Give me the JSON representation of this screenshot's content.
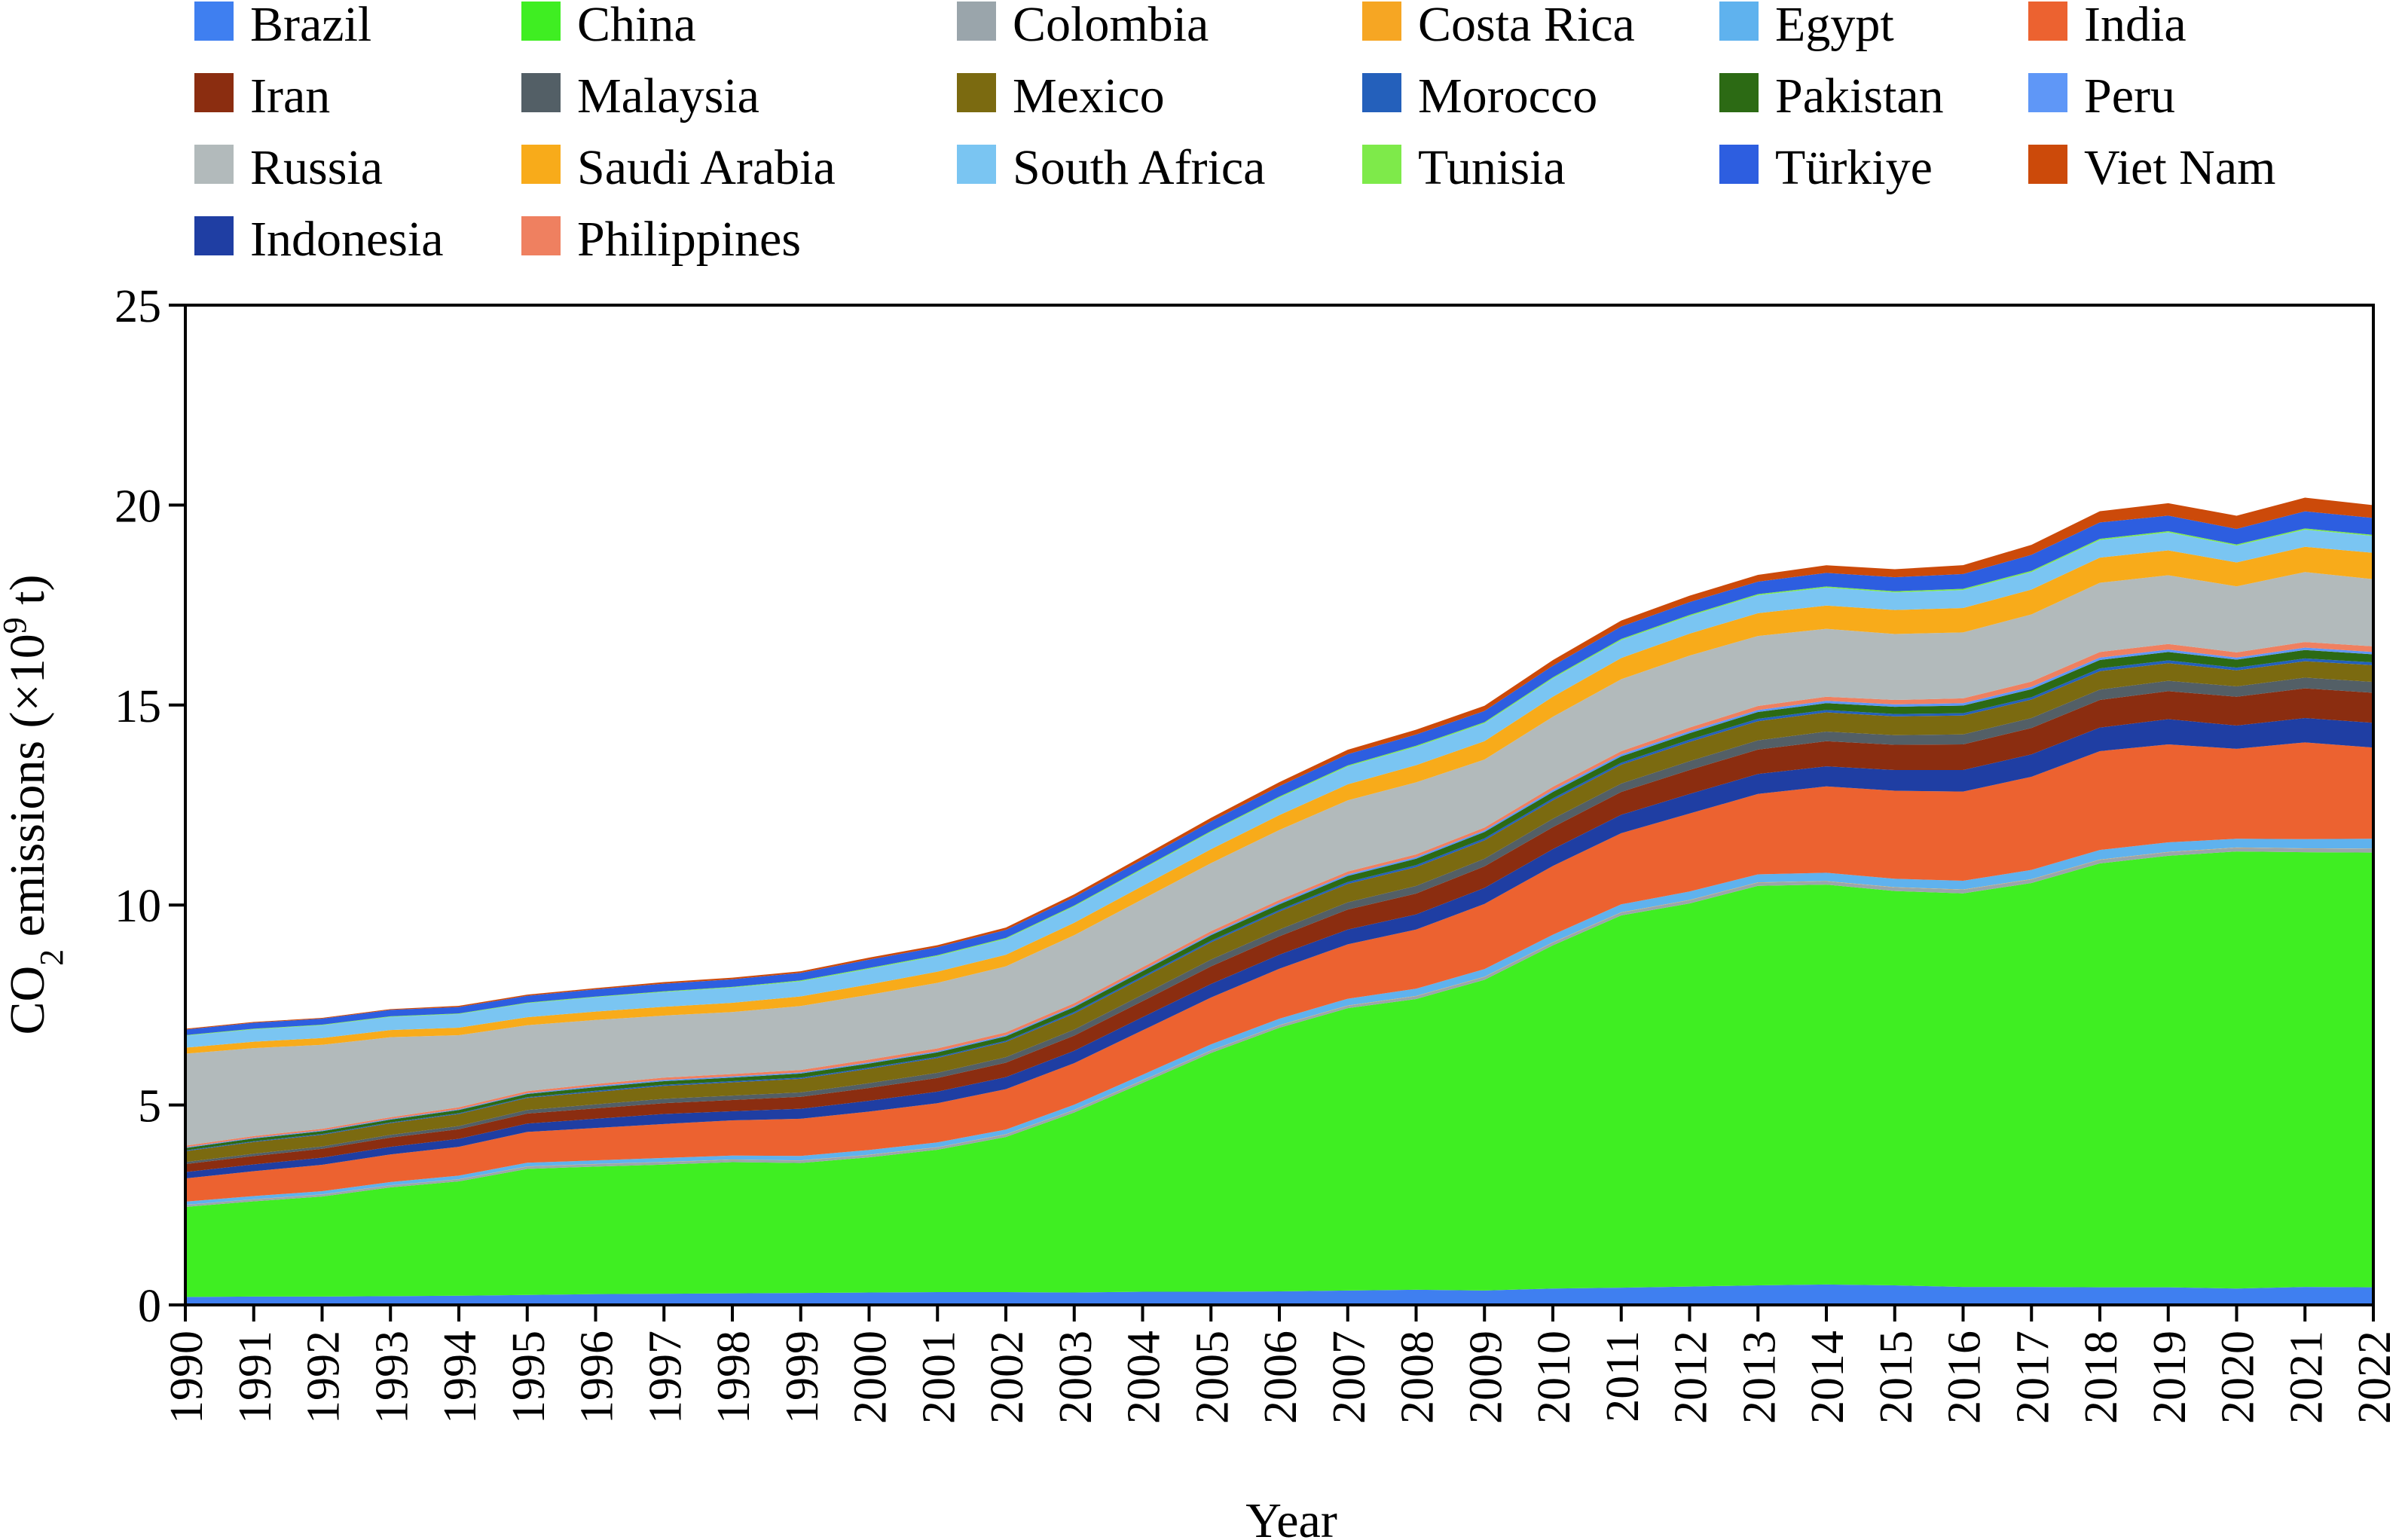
{
  "chart_data": {
    "type": "area",
    "stacked": true,
    "title": "",
    "xlabel": "Year",
    "ylabel": "CO",
    "ylabel_sub": "2",
    "ylabel_rest": " emissions (×10",
    "ylabel_sup": "9",
    "ylabel_end": " t)",
    "ylim": [
      0,
      25
    ],
    "yticks": [
      0,
      5,
      10,
      15,
      20,
      25
    ],
    "grid": false,
    "legend_position": "top",
    "x": [
      1990,
      1991,
      1992,
      1993,
      1994,
      1995,
      1996,
      1997,
      1998,
      1999,
      2000,
      2001,
      2002,
      2003,
      2004,
      2005,
      2006,
      2007,
      2008,
      2009,
      2010,
      2011,
      2012,
      2013,
      2014,
      2015,
      2016,
      2017,
      2018,
      2019,
      2020,
      2021,
      2022
    ],
    "series": [
      {
        "name": "Brazil",
        "color": "#3f7ff0",
        "values": [
          0.2,
          0.21,
          0.21,
          0.22,
          0.23,
          0.25,
          0.27,
          0.28,
          0.29,
          0.3,
          0.31,
          0.32,
          0.32,
          0.31,
          0.33,
          0.33,
          0.34,
          0.36,
          0.38,
          0.36,
          0.41,
          0.43,
          0.46,
          0.49,
          0.51,
          0.49,
          0.45,
          0.45,
          0.44,
          0.44,
          0.41,
          0.45,
          0.44
        ]
      },
      {
        "name": "China",
        "color": "#3fee22",
        "values": [
          2.25,
          2.38,
          2.5,
          2.72,
          2.86,
          3.15,
          3.19,
          3.23,
          3.28,
          3.25,
          3.38,
          3.56,
          3.88,
          4.5,
          5.22,
          5.97,
          6.59,
          7.06,
          7.27,
          7.77,
          8.58,
          9.31,
          9.58,
          9.99,
          10.0,
          9.86,
          9.84,
          10.1,
          10.6,
          10.79,
          10.93,
          10.87,
          10.87
        ]
      },
      {
        "name": "Colombia",
        "color": "#9aa5ab",
        "values": [
          0.05,
          0.05,
          0.05,
          0.05,
          0.05,
          0.06,
          0.06,
          0.06,
          0.06,
          0.06,
          0.06,
          0.06,
          0.06,
          0.06,
          0.06,
          0.06,
          0.06,
          0.06,
          0.07,
          0.07,
          0.07,
          0.07,
          0.08,
          0.08,
          0.08,
          0.09,
          0.09,
          0.09,
          0.09,
          0.09,
          0.09,
          0.09,
          0.09
        ]
      },
      {
        "name": "Costa Rica",
        "color": "#f6a623",
        "values": [
          0.003,
          0.003,
          0.004,
          0.004,
          0.004,
          0.005,
          0.005,
          0.005,
          0.005,
          0.005,
          0.005,
          0.005,
          0.006,
          0.006,
          0.006,
          0.006,
          0.007,
          0.007,
          0.007,
          0.007,
          0.007,
          0.007,
          0.007,
          0.007,
          0.007,
          0.007,
          0.007,
          0.007,
          0.007,
          0.007,
          0.007,
          0.007,
          0.007
        ]
      },
      {
        "name": "Egypt",
        "color": "#5fb2ee",
        "values": [
          0.08,
          0.08,
          0.08,
          0.08,
          0.09,
          0.09,
          0.09,
          0.1,
          0.1,
          0.11,
          0.12,
          0.12,
          0.12,
          0.13,
          0.14,
          0.15,
          0.16,
          0.17,
          0.18,
          0.19,
          0.19,
          0.2,
          0.21,
          0.2,
          0.21,
          0.21,
          0.22,
          0.23,
          0.24,
          0.24,
          0.22,
          0.23,
          0.25
        ]
      },
      {
        "name": "India",
        "color": "#ec6230",
        "values": [
          0.58,
          0.62,
          0.66,
          0.69,
          0.72,
          0.77,
          0.81,
          0.85,
          0.88,
          0.93,
          0.96,
          0.98,
          1.01,
          1.04,
          1.11,
          1.17,
          1.25,
          1.36,
          1.48,
          1.63,
          1.72,
          1.78,
          1.95,
          2.01,
          2.16,
          2.2,
          2.23,
          2.33,
          2.47,
          2.45,
          2.25,
          2.42,
          2.28
        ]
      },
      {
        "name": "Iran",
        "color": "#8b2d10",
        "values": [
          0.2,
          0.21,
          0.22,
          0.23,
          0.24,
          0.25,
          0.26,
          0.27,
          0.28,
          0.3,
          0.32,
          0.34,
          0.36,
          0.38,
          0.4,
          0.44,
          0.46,
          0.5,
          0.52,
          0.54,
          0.55,
          0.57,
          0.6,
          0.61,
          0.63,
          0.63,
          0.64,
          0.66,
          0.69,
          0.7,
          0.72,
          0.74,
          0.75
        ]
      },
      {
        "name": "Malaysia",
        "color": "#535f66",
        "values": [
          0.05,
          0.06,
          0.06,
          0.07,
          0.08,
          0.09,
          0.1,
          0.11,
          0.11,
          0.11,
          0.12,
          0.13,
          0.14,
          0.15,
          0.16,
          0.17,
          0.17,
          0.18,
          0.19,
          0.19,
          0.21,
          0.21,
          0.22,
          0.23,
          0.24,
          0.24,
          0.25,
          0.25,
          0.26,
          0.26,
          0.26,
          0.27,
          0.27
        ]
      },
      {
        "name": "Mexico",
        "color": "#7b6a10",
        "values": [
          0.27,
          0.29,
          0.29,
          0.29,
          0.3,
          0.3,
          0.31,
          0.32,
          0.33,
          0.34,
          0.36,
          0.37,
          0.38,
          0.4,
          0.42,
          0.43,
          0.45,
          0.46,
          0.47,
          0.46,
          0.46,
          0.47,
          0.48,
          0.48,
          0.48,
          0.47,
          0.47,
          0.46,
          0.46,
          0.44,
          0.4,
          0.41,
          0.42
        ]
      },
      {
        "name": "Morocco",
        "color": "#2460bb",
        "values": [
          0.02,
          0.02,
          0.02,
          0.02,
          0.02,
          0.02,
          0.03,
          0.03,
          0.03,
          0.03,
          0.03,
          0.03,
          0.03,
          0.04,
          0.04,
          0.04,
          0.04,
          0.05,
          0.05,
          0.05,
          0.05,
          0.05,
          0.06,
          0.06,
          0.06,
          0.06,
          0.06,
          0.06,
          0.07,
          0.07,
          0.07,
          0.07,
          0.07
        ]
      },
      {
        "name": "Pakistan",
        "color": "#2c6a14",
        "values": [
          0.06,
          0.07,
          0.07,
          0.07,
          0.08,
          0.08,
          0.09,
          0.09,
          0.09,
          0.1,
          0.1,
          0.11,
          0.11,
          0.12,
          0.13,
          0.14,
          0.14,
          0.15,
          0.16,
          0.16,
          0.16,
          0.16,
          0.16,
          0.17,
          0.17,
          0.18,
          0.19,
          0.2,
          0.21,
          0.21,
          0.2,
          0.21,
          0.2
        ]
      },
      {
        "name": "Peru",
        "color": "#5f97f7",
        "values": [
          0.02,
          0.02,
          0.02,
          0.02,
          0.02,
          0.02,
          0.03,
          0.03,
          0.03,
          0.03,
          0.03,
          0.03,
          0.03,
          0.03,
          0.03,
          0.03,
          0.04,
          0.04,
          0.04,
          0.04,
          0.05,
          0.05,
          0.05,
          0.05,
          0.06,
          0.06,
          0.06,
          0.06,
          0.06,
          0.06,
          0.05,
          0.06,
          0.06
        ]
      },
      {
        "name": "Russia",
        "color": "#b2babb",
        "values": [
          2.3,
          2.2,
          2.1,
          2.0,
          1.8,
          1.65,
          1.6,
          1.55,
          1.55,
          1.6,
          1.62,
          1.64,
          1.65,
          1.7,
          1.7,
          1.7,
          1.75,
          1.78,
          1.8,
          1.7,
          1.75,
          1.8,
          1.8,
          1.75,
          1.7,
          1.65,
          1.65,
          1.68,
          1.73,
          1.72,
          1.65,
          1.75,
          1.68
        ]
      },
      {
        "name": "Saudi Arabia",
        "color": "#f8ab1a",
        "values": [
          0.15,
          0.16,
          0.17,
          0.18,
          0.19,
          0.2,
          0.21,
          0.22,
          0.23,
          0.24,
          0.26,
          0.28,
          0.29,
          0.31,
          0.33,
          0.35,
          0.37,
          0.4,
          0.43,
          0.46,
          0.5,
          0.53,
          0.55,
          0.57,
          0.58,
          0.6,
          0.61,
          0.62,
          0.63,
          0.62,
          0.6,
          0.63,
          0.66
        ]
      },
      {
        "name": "South Africa",
        "color": "#7ac5f2",
        "values": [
          0.3,
          0.31,
          0.32,
          0.33,
          0.34,
          0.35,
          0.36,
          0.37,
          0.38,
          0.38,
          0.39,
          0.39,
          0.4,
          0.41,
          0.42,
          0.43,
          0.44,
          0.45,
          0.46,
          0.45,
          0.46,
          0.45,
          0.44,
          0.45,
          0.45,
          0.44,
          0.45,
          0.44,
          0.44,
          0.45,
          0.42,
          0.43,
          0.42
        ]
      },
      {
        "name": "Tunisia",
        "color": "#7eea4a",
        "values": [
          0.013,
          0.013,
          0.014,
          0.014,
          0.015,
          0.015,
          0.016,
          0.017,
          0.018,
          0.019,
          0.02,
          0.021,
          0.021,
          0.022,
          0.023,
          0.024,
          0.025,
          0.025,
          0.026,
          0.026,
          0.027,
          0.027,
          0.028,
          0.028,
          0.029,
          0.029,
          0.03,
          0.03,
          0.03,
          0.03,
          0.028,
          0.029,
          0.03
        ]
      },
      {
        "name": "Türkiye",
        "color": "#2d5ee0",
        "values": [
          0.14,
          0.15,
          0.15,
          0.16,
          0.16,
          0.17,
          0.18,
          0.19,
          0.19,
          0.19,
          0.21,
          0.2,
          0.2,
          0.21,
          0.22,
          0.24,
          0.26,
          0.28,
          0.28,
          0.28,
          0.29,
          0.31,
          0.32,
          0.31,
          0.34,
          0.35,
          0.37,
          0.4,
          0.41,
          0.39,
          0.39,
          0.43,
          0.42
        ]
      },
      {
        "name": "Viet Nam",
        "color": "#cc4a0a",
        "values": [
          0.02,
          0.02,
          0.02,
          0.02,
          0.03,
          0.03,
          0.03,
          0.04,
          0.04,
          0.04,
          0.05,
          0.05,
          0.06,
          0.07,
          0.08,
          0.09,
          0.1,
          0.11,
          0.12,
          0.13,
          0.14,
          0.15,
          0.16,
          0.17,
          0.19,
          0.2,
          0.22,
          0.25,
          0.28,
          0.31,
          0.33,
          0.34,
          0.32
        ]
      },
      {
        "name": "Indonesia",
        "color": "#1f3ea3",
        "values": [
          0.16,
          0.17,
          0.18,
          0.19,
          0.2,
          0.21,
          0.23,
          0.25,
          0.23,
          0.25,
          0.27,
          0.29,
          0.3,
          0.31,
          0.33,
          0.34,
          0.35,
          0.37,
          0.38,
          0.4,
          0.42,
          0.46,
          0.49,
          0.5,
          0.5,
          0.52,
          0.54,
          0.56,
          0.59,
          0.63,
          0.58,
          0.61,
          0.62
        ]
      },
      {
        "name": "Philippines",
        "color": "#ef8060",
        "values": [
          0.04,
          0.04,
          0.04,
          0.04,
          0.05,
          0.05,
          0.05,
          0.06,
          0.06,
          0.06,
          0.07,
          0.07,
          0.07,
          0.07,
          0.07,
          0.07,
          0.07,
          0.07,
          0.07,
          0.07,
          0.08,
          0.08,
          0.09,
          0.1,
          0.1,
          0.11,
          0.12,
          0.13,
          0.14,
          0.14,
          0.13,
          0.14,
          0.14
        ]
      }
    ],
    "stack_order": [
      "Brazil",
      "China",
      "Colombia",
      "Costa Rica",
      "Egypt",
      "India",
      "Indonesia",
      "Iran",
      "Malaysia",
      "Mexico",
      "Morocco",
      "Pakistan",
      "Peru",
      "Philippines",
      "Russia",
      "Saudi Arabia",
      "South Africa",
      "Tunisia",
      "Türkiye",
      "Viet Nam"
    ]
  }
}
